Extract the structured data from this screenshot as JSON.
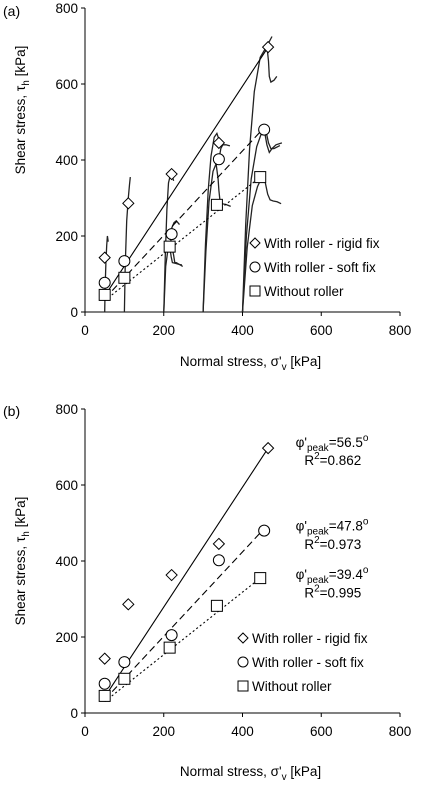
{
  "chart_data": [
    {
      "panel_label": "(a)",
      "type": "scatter",
      "xlabel": "Normal stress, σ'",
      "xlabel_sub": "v",
      "xlabel_unit": " [kPa]",
      "ylabel": "Shear stress, τ",
      "ylabel_sub": "h",
      "ylabel_unit": " [kPa]",
      "xlim": [
        0,
        800
      ],
      "ylim": [
        0,
        800
      ],
      "xticks": [
        "0",
        "200",
        "400",
        "600",
        "800"
      ],
      "yticks": [
        "0",
        "200",
        "400",
        "600",
        "800"
      ],
      "legend_position": "bottom-right",
      "series": [
        {
          "name": "With roller - rigid fix",
          "marker": "diamond",
          "line": "solid",
          "x": [
            50,
            110,
            220,
            340,
            465
          ],
          "y": [
            143,
            286,
            363,
            445,
            697
          ]
        },
        {
          "name": "With roller - soft fix",
          "marker": "circle",
          "line": "dashed",
          "x": [
            50,
            100,
            220,
            340,
            455
          ],
          "y": [
            77,
            134,
            205,
            402,
            480
          ]
        },
        {
          "name": "Without roller",
          "marker": "square",
          "line": "dotted",
          "x": [
            50,
            100,
            215,
            335,
            445
          ],
          "y": [
            45,
            90,
            172,
            282,
            355
          ]
        }
      ],
      "fit_lines": [
        {
          "series": "With roller - rigid fix",
          "x": [
            50,
            465
          ],
          "y": [
            42,
            697
          ]
        },
        {
          "series": "With roller - soft fix",
          "x": [
            50,
            455
          ],
          "y": [
            35,
            485
          ]
        },
        {
          "series": "Without roller",
          "x": [
            50,
            445
          ],
          "y": [
            30,
            355
          ]
        }
      ],
      "curves": [
        {
          "points": [
            [
              50,
              0
            ],
            [
              51,
              60
            ],
            [
              53,
              130
            ],
            [
              55,
              175
            ],
            [
              57,
              200
            ],
            [
              59,
              185
            ]
          ]
        },
        {
          "points": [
            [
              100,
              0
            ],
            [
              102,
              120
            ],
            [
              106,
              240
            ],
            [
              110,
              300
            ],
            [
              113,
              335
            ],
            [
              115,
              355
            ]
          ]
        },
        {
          "points": [
            [
              200,
              0
            ],
            [
              204,
              150
            ],
            [
              208,
              270
            ],
            [
              212,
              340
            ],
            [
              218,
              365
            ],
            [
              222,
              358
            ],
            [
              225,
              345
            ]
          ]
        },
        {
          "points": [
            [
              300,
              0
            ],
            [
              306,
              180
            ],
            [
              313,
              320
            ],
            [
              320,
              410
            ],
            [
              328,
              460
            ],
            [
              335,
              470
            ],
            [
              342,
              448
            ],
            [
              346,
              436
            ]
          ]
        },
        {
          "points": [
            [
              400,
              0
            ],
            [
              408,
              230
            ],
            [
              418,
              430
            ],
            [
              430,
              580
            ],
            [
              445,
              670
            ],
            [
              462,
              700
            ],
            [
              475,
              725
            ]
          ]
        },
        {
          "points": [
            [
              462,
              700
            ],
            [
              466,
              660
            ],
            [
              468,
              620
            ],
            [
              472,
              605
            ],
            [
              480,
              610
            ],
            [
              487,
              620
            ]
          ]
        },
        {
          "points": [
            [
              210,
              200
            ],
            [
              214,
              200
            ],
            [
              218,
              190
            ],
            [
              222,
              165
            ],
            [
              225,
              150
            ],
            [
              228,
              130
            ],
            [
              232,
              130
            ],
            [
              240,
              125
            ],
            [
              248,
              120
            ]
          ]
        },
        {
          "points": [
            [
              300,
              0
            ],
            [
              307,
              160
            ],
            [
              315,
              290
            ],
            [
              325,
              370
            ],
            [
              333,
              390
            ],
            [
              338,
              350
            ],
            [
              340,
              320
            ],
            [
              343,
              290
            ],
            [
              348,
              285
            ],
            [
              358,
              283
            ],
            [
              370,
              278
            ]
          ]
        },
        {
          "points": [
            [
              400,
              0
            ],
            [
              410,
              200
            ],
            [
              422,
              350
            ],
            [
              436,
              435
            ],
            [
              448,
              470
            ],
            [
              456,
              480
            ],
            [
              462,
              465
            ],
            [
              466,
              445
            ],
            [
              472,
              430
            ],
            [
              480,
              430
            ],
            [
              495,
              438
            ]
          ]
        },
        {
          "points": [
            [
              400,
              0
            ],
            [
              412,
              170
            ],
            [
              425,
              280
            ],
            [
              438,
              330
            ],
            [
              448,
              352
            ],
            [
              455,
              355
            ],
            [
              460,
              330
            ],
            [
              464,
              310
            ],
            [
              470,
              295
            ],
            [
              478,
              292
            ],
            [
              488,
              290
            ],
            [
              498,
              285
            ]
          ]
        },
        {
          "points": [
            [
              200,
              0
            ],
            [
              205,
              120
            ],
            [
              210,
              160
            ],
            [
              214,
              180
            ],
            [
              216,
              165
            ],
            [
              219,
              145
            ],
            [
              222,
              130
            ],
            [
              230,
              128
            ],
            [
              240,
              125
            ],
            [
              246,
              124
            ]
          ]
        },
        {
          "points": [
            [
              220,
              220
            ],
            [
              226,
              235
            ],
            [
              232,
              240
            ],
            [
              240,
              230
            ]
          ]
        },
        {
          "points": [
            [
              340,
              400
            ],
            [
              345,
              430
            ],
            [
              350,
              440
            ],
            [
              358,
              440
            ],
            [
              368,
              437
            ]
          ]
        },
        {
          "points": [
            [
              455,
              480
            ],
            [
              462,
              440
            ],
            [
              468,
              420
            ],
            [
              475,
              430
            ],
            [
              485,
              440
            ],
            [
              500,
              445
            ]
          ]
        }
      ]
    },
    {
      "panel_label": "(b)",
      "type": "scatter",
      "xlabel": "Normal stress, σ'",
      "xlabel_sub": "v",
      "xlabel_unit": " [kPa]",
      "ylabel": "Shear stress, τ",
      "ylabel_sub": "h",
      "ylabel_unit": " [kPa]",
      "xlim": [
        0,
        800
      ],
      "ylim": [
        0,
        800
      ],
      "xticks": [
        "0",
        "200",
        "400",
        "600",
        "800"
      ],
      "yticks": [
        "0",
        "200",
        "400",
        "600",
        "800"
      ],
      "legend_position": "bottom-right",
      "series": [
        {
          "name": "With roller - rigid fix",
          "marker": "diamond",
          "line": "solid",
          "x": [
            50,
            110,
            220,
            340,
            465
          ],
          "y": [
            143,
            286,
            363,
            445,
            697
          ]
        },
        {
          "name": "With roller - soft fix",
          "marker": "circle",
          "line": "dashed",
          "x": [
            50,
            100,
            220,
            340,
            455
          ],
          "y": [
            77,
            134,
            205,
            402,
            480
          ]
        },
        {
          "name": "Without roller",
          "marker": "square",
          "line": "dotted",
          "x": [
            50,
            100,
            215,
            335,
            445
          ],
          "y": [
            45,
            90,
            172,
            282,
            355
          ]
        }
      ],
      "fit_lines": [
        {
          "series": "With roller - rigid fix",
          "x": [
            50,
            465
          ],
          "y": [
            42,
            697
          ]
        },
        {
          "series": "With roller - soft fix",
          "x": [
            50,
            455
          ],
          "y": [
            35,
            485
          ]
        },
        {
          "series": "Without roller",
          "x": [
            50,
            445
          ],
          "y": [
            30,
            355
          ]
        }
      ],
      "annotations": [
        {
          "phi_symbol": "φ'",
          "phi_sub": "peak",
          "phi_value": "=56.5",
          "phi_unit": "o",
          "r2_prefix": "R",
          "r2_sup": "2",
          "r2_value": "=0.862",
          "x": 535,
          "y": 700,
          "y2": 652
        },
        {
          "phi_symbol": "φ'",
          "phi_sub": "peak",
          "phi_value": "=47.8",
          "phi_unit": "o",
          "r2_prefix": "R",
          "r2_sup": "2",
          "r2_value": "=0.973",
          "x": 535,
          "y": 480,
          "y2": 432
        },
        {
          "phi_symbol": "φ'",
          "phi_sub": "peak",
          "phi_value": "=39.4",
          "phi_unit": "o",
          "r2_prefix": "R",
          "r2_sup": "2",
          "r2_value": "=0.995",
          "x": 535,
          "y": 352,
          "y2": 304
        }
      ]
    }
  ]
}
